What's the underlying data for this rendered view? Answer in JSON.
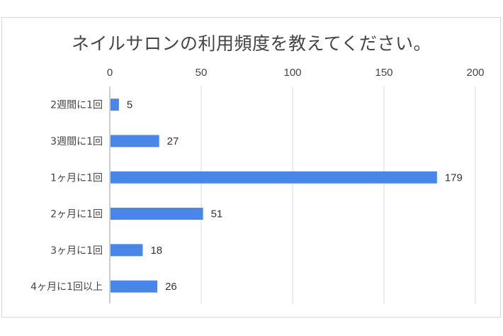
{
  "chart_data": {
    "type": "bar",
    "orientation": "horizontal",
    "title": "ネイルサロンの利用頻度を教えてください。",
    "categories": [
      "2週間に1回",
      "3週間に1回",
      "1ヶ月に1回",
      "2ヶ月に1回",
      "3ヶ月に1回",
      "4ヶ月に1回以上"
    ],
    "values": [
      5,
      27,
      179,
      51,
      18,
      26
    ],
    "xticks": [
      "0",
      "50",
      "100",
      "150",
      "200"
    ],
    "xlim": [
      0,
      200
    ],
    "xaxis_position": "top",
    "grid": true,
    "legend": "none",
    "bar_color": "#4a86e8",
    "grid_color": "#d9d9d9"
  }
}
